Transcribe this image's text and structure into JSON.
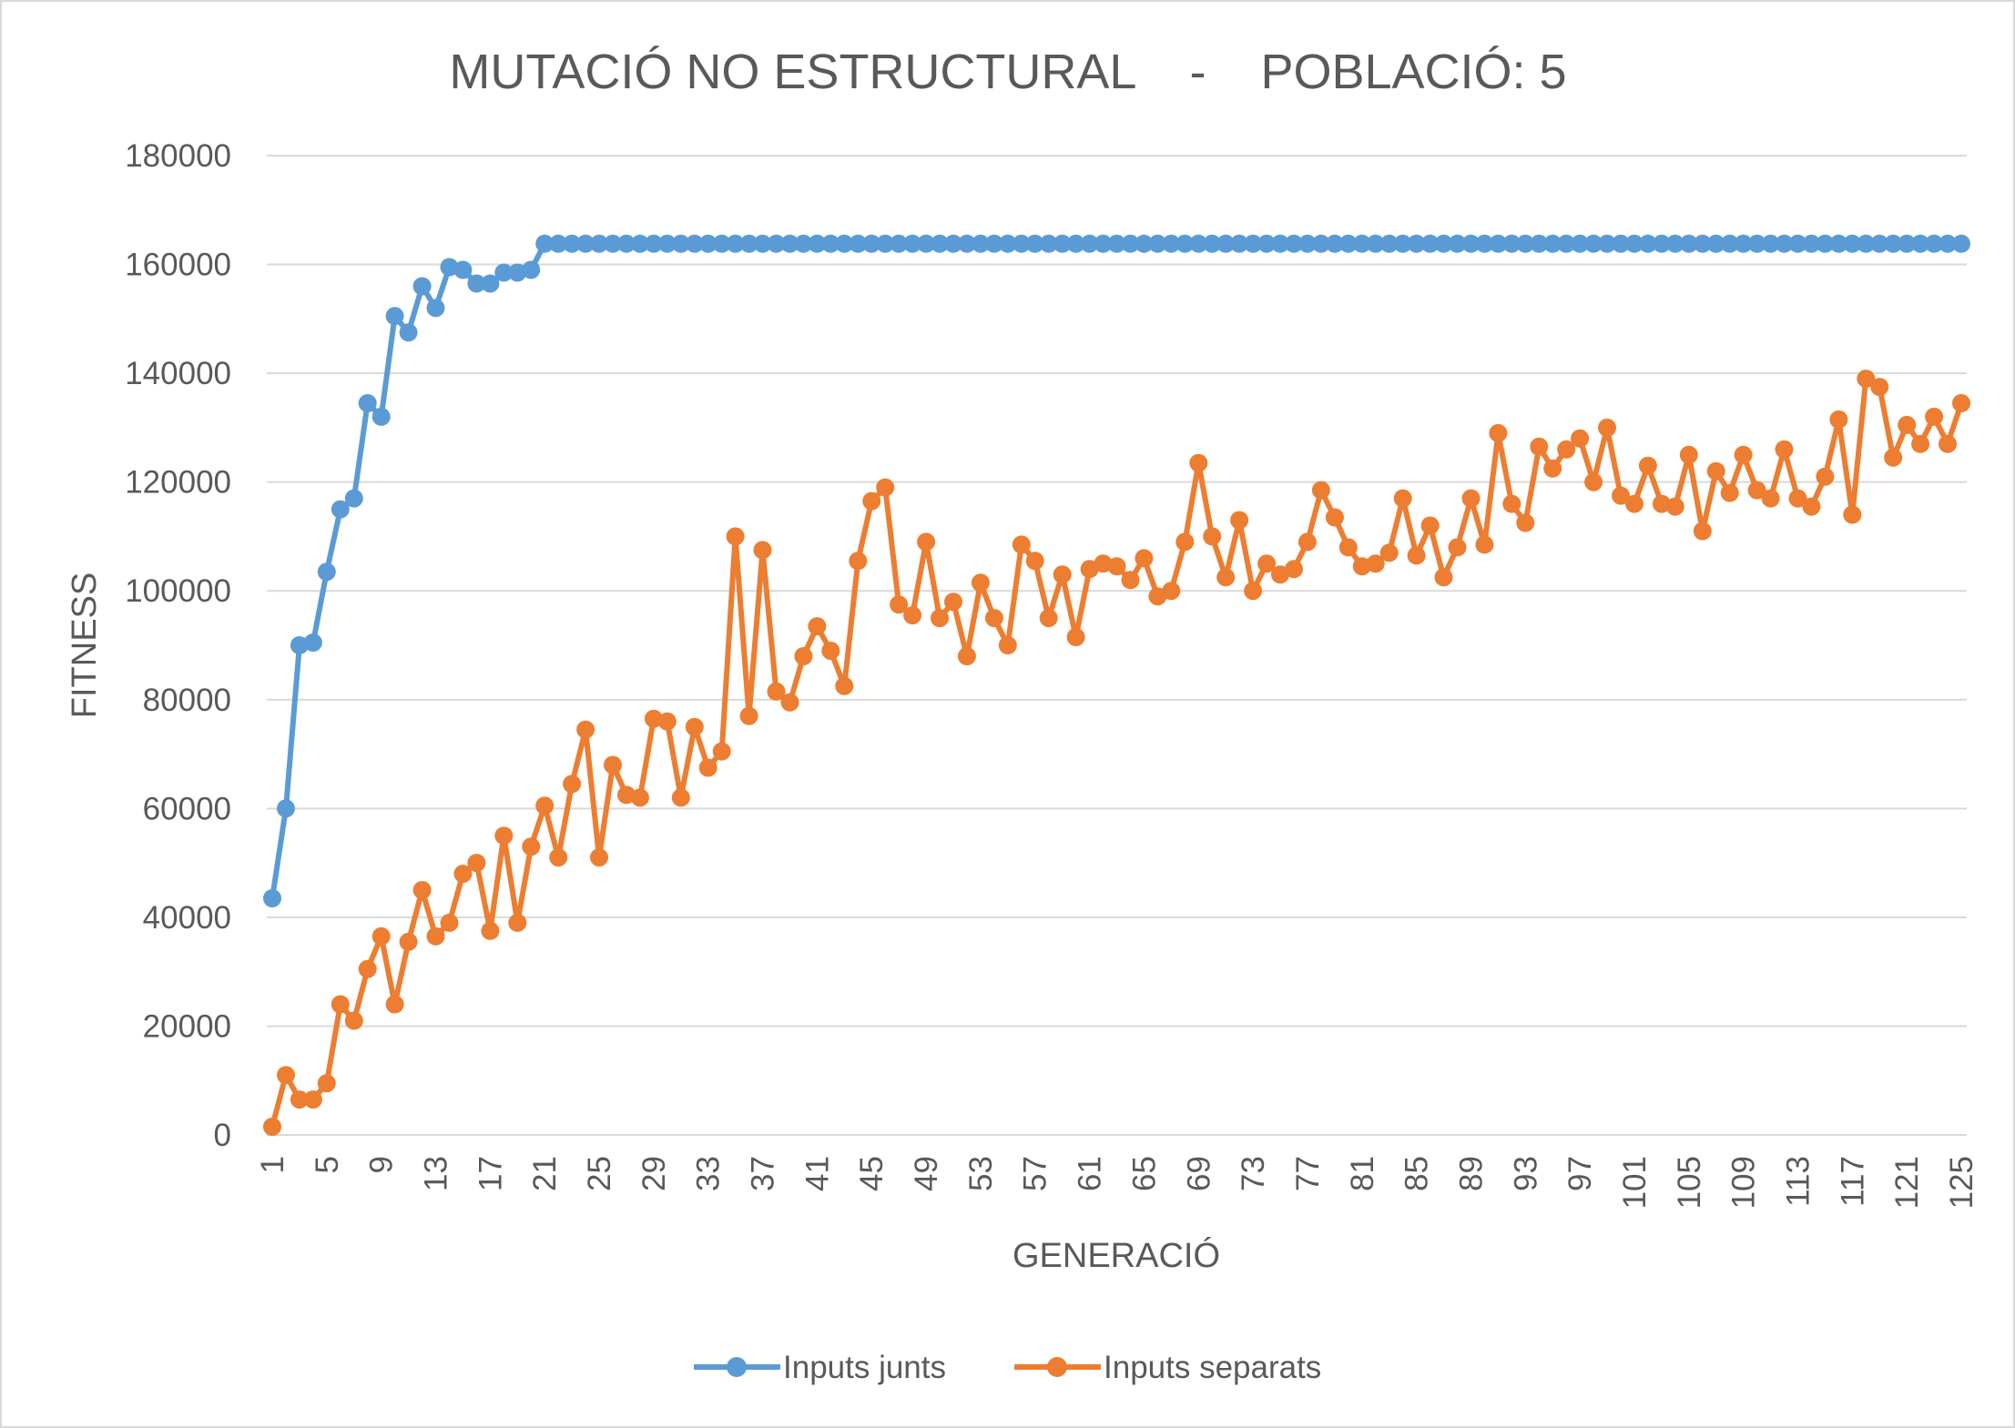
{
  "chart_data": {
    "type": "line",
    "title": "MUTACIÓ NO ESTRUCTURAL    -    POBLACIÓ: 5",
    "xlabel": "GENERACIÓ",
    "ylabel": "FITNESS",
    "ylim": [
      0,
      180000
    ],
    "yticks": [
      0,
      20000,
      40000,
      60000,
      80000,
      100000,
      120000,
      140000,
      160000,
      180000
    ],
    "xlim": [
      1,
      125
    ],
    "xtick_labels": [
      "1",
      "5",
      "9",
      "13",
      "17",
      "21",
      "25",
      "29",
      "33",
      "37",
      "41",
      "45",
      "49",
      "53",
      "57",
      "61",
      "65",
      "69",
      "73",
      "77",
      "81",
      "85",
      "89",
      "93",
      "97",
      "101",
      "105",
      "109",
      "113",
      "117",
      "121",
      "125"
    ],
    "grid": true,
    "legend": "bottom",
    "series": [
      {
        "name": "Inputs junts",
        "color": "#5b9bd5",
        "values": [
          43500,
          60000,
          90000,
          90500,
          103500,
          115000,
          117000,
          134500,
          132000,
          150500,
          147500,
          156000,
          152000,
          159500,
          159000,
          156500,
          156500,
          158500,
          158500,
          159000,
          163800,
          163800,
          163800,
          163800,
          163800,
          163800,
          163800,
          163800,
          163800,
          163800,
          163800,
          163800,
          163800,
          163800,
          163800,
          163800,
          163800,
          163800,
          163800,
          163800,
          163800,
          163800,
          163800,
          163800,
          163800,
          163800,
          163800,
          163800,
          163800,
          163800,
          163800,
          163800,
          163800,
          163800,
          163800,
          163800,
          163800,
          163800,
          163800,
          163800,
          163800,
          163800,
          163800,
          163800,
          163800,
          163800,
          163800,
          163800,
          163800,
          163800,
          163800,
          163800,
          163800,
          163800,
          163800,
          163800,
          163800,
          163800,
          163800,
          163800,
          163800,
          163800,
          163800,
          163800,
          163800,
          163800,
          163800,
          163800,
          163800,
          163800,
          163800,
          163800,
          163800,
          163800,
          163800,
          163800,
          163800,
          163800,
          163800,
          163800,
          163800,
          163800,
          163800,
          163800,
          163800,
          163800,
          163800,
          163800,
          163800,
          163800,
          163800,
          163800,
          163800,
          163800,
          163800,
          163800,
          163800,
          163800,
          163800,
          163800,
          163800,
          163800,
          163800,
          163800,
          163800
        ]
      },
      {
        "name": "Inputs separats",
        "color": "#ed7d31",
        "values": [
          1500,
          11000,
          6500,
          6500,
          9500,
          24000,
          21000,
          30500,
          36500,
          24000,
          35500,
          45000,
          36500,
          39000,
          48000,
          50000,
          37500,
          55000,
          39000,
          53000,
          60500,
          51000,
          64500,
          74500,
          51000,
          68000,
          62500,
          62000,
          76500,
          76000,
          62000,
          75000,
          67500,
          70500,
          110000,
          77000,
          107500,
          81500,
          79500,
          88000,
          93500,
          89000,
          82500,
          105500,
          116500,
          119000,
          97500,
          95500,
          109000,
          95000,
          98000,
          88000,
          101500,
          95000,
          90000,
          108500,
          105500,
          95000,
          103000,
          91500,
          104000,
          105000,
          104500,
          102000,
          106000,
          99000,
          100000,
          109000,
          123500,
          110000,
          102500,
          113000,
          100000,
          105000,
          103000,
          104000,
          109000,
          118500,
          113500,
          108000,
          104500,
          105000,
          107000,
          117000,
          106500,
          112000,
          102500,
          108000,
          117000,
          108500,
          129000,
          116000,
          112500,
          126500,
          122500,
          126000,
          128000,
          120000,
          130000,
          117500,
          116000,
          123000,
          116000,
          115500,
          125000,
          111000,
          122000,
          118000,
          125000,
          118500,
          117000,
          126000,
          117000,
          115500,
          121000,
          131500,
          114000,
          139000,
          137500,
          124500,
          130500,
          127000,
          132000,
          127000,
          134500
        ]
      }
    ]
  }
}
